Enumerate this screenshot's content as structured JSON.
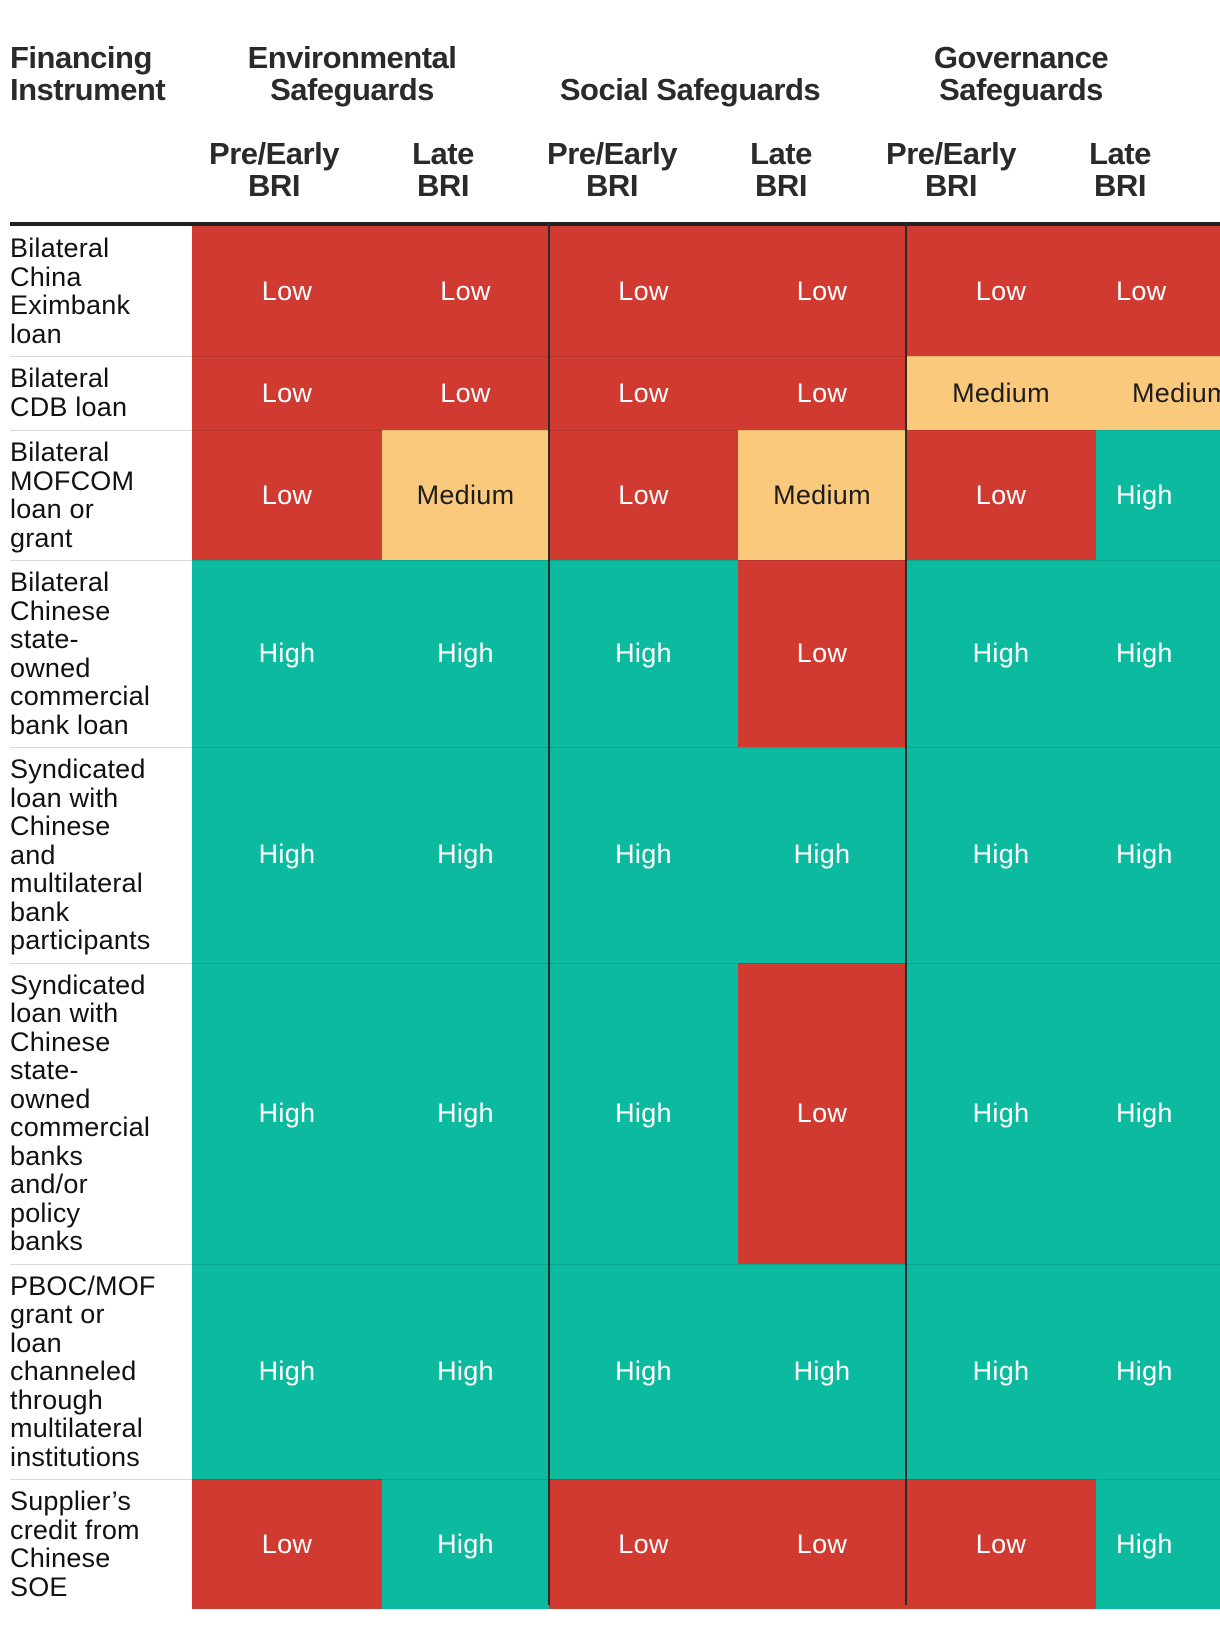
{
  "header": {
    "instrument": [
      "Financing",
      "Instrument"
    ],
    "groups": [
      {
        "label": [
          "Environmental",
          "Safeguards"
        ],
        "sub": [
          [
            "Pre/Early",
            "BRI"
          ],
          [
            "Late",
            "BRI"
          ]
        ]
      },
      {
        "label": [
          "Social Safeguards"
        ],
        "sub": [
          [
            "Pre/Early",
            "BRI"
          ],
          [
            "Late",
            "BRI"
          ]
        ]
      },
      {
        "label": [
          "Governance",
          "Safeguards"
        ],
        "sub": [
          [
            "Pre/Early",
            "BRI"
          ],
          [
            "Late",
            "BRI"
          ]
        ]
      }
    ]
  },
  "colors": {
    "Low": "#d13a31",
    "Medium": "#fbc97b",
    "High": "#0bba9f"
  },
  "chart_data": {
    "type": "table",
    "title": "",
    "columns": [
      "Environmental Safeguards — Pre/Early BRI",
      "Environmental Safeguards — Late BRI",
      "Social Safeguards — Pre/Early BRI",
      "Social Safeguards — Late BRI",
      "Governance Safeguards — Pre/Early BRI",
      "Governance Safeguards — Late BRI"
    ],
    "rows": [
      {
        "instrument": "Bilateral\nChina\nEximbank\nloan",
        "values": [
          "Low",
          "Low",
          "Low",
          "Low",
          "Low",
          "Low"
        ]
      },
      {
        "instrument": "Bilateral\nCDB loan",
        "values": [
          "Low",
          "Low",
          "Low",
          "Low",
          "Medium",
          "Medium"
        ]
      },
      {
        "instrument": "Bilateral\nMOFCOM\nloan or\ngrant",
        "values": [
          "Low",
          "Medium",
          "Low",
          "Medium",
          "Low",
          "High"
        ]
      },
      {
        "instrument": "Bilateral\nChinese\nstate-\nowned\ncommercial\nbank loan",
        "values": [
          "High",
          "High",
          "High",
          "Low",
          "High",
          "High"
        ]
      },
      {
        "instrument": "Syndicated\nloan with\nChinese\nand\nmultilateral\nbank\nparticipants",
        "values": [
          "High",
          "High",
          "High",
          "High",
          "High",
          "High"
        ]
      },
      {
        "instrument": "Syndicated\nloan with\nChinese\nstate-\nowned\ncommercial\nbanks\nand/or\npolicy\nbanks",
        "values": [
          "High",
          "High",
          "High",
          "Low",
          "High",
          "High"
        ]
      },
      {
        "instrument": "PBOC/MOF\ngrant or\nloan\nchanneled\nthrough\nmultilateral\ninstitutions",
        "values": [
          "High",
          "High",
          "High",
          "High",
          "High",
          "High"
        ]
      },
      {
        "instrument": "Supplier’s\ncredit from\nChinese\nSOE",
        "values": [
          "Low",
          "High",
          "Low",
          "Low",
          "Low",
          "High"
        ]
      }
    ]
  }
}
